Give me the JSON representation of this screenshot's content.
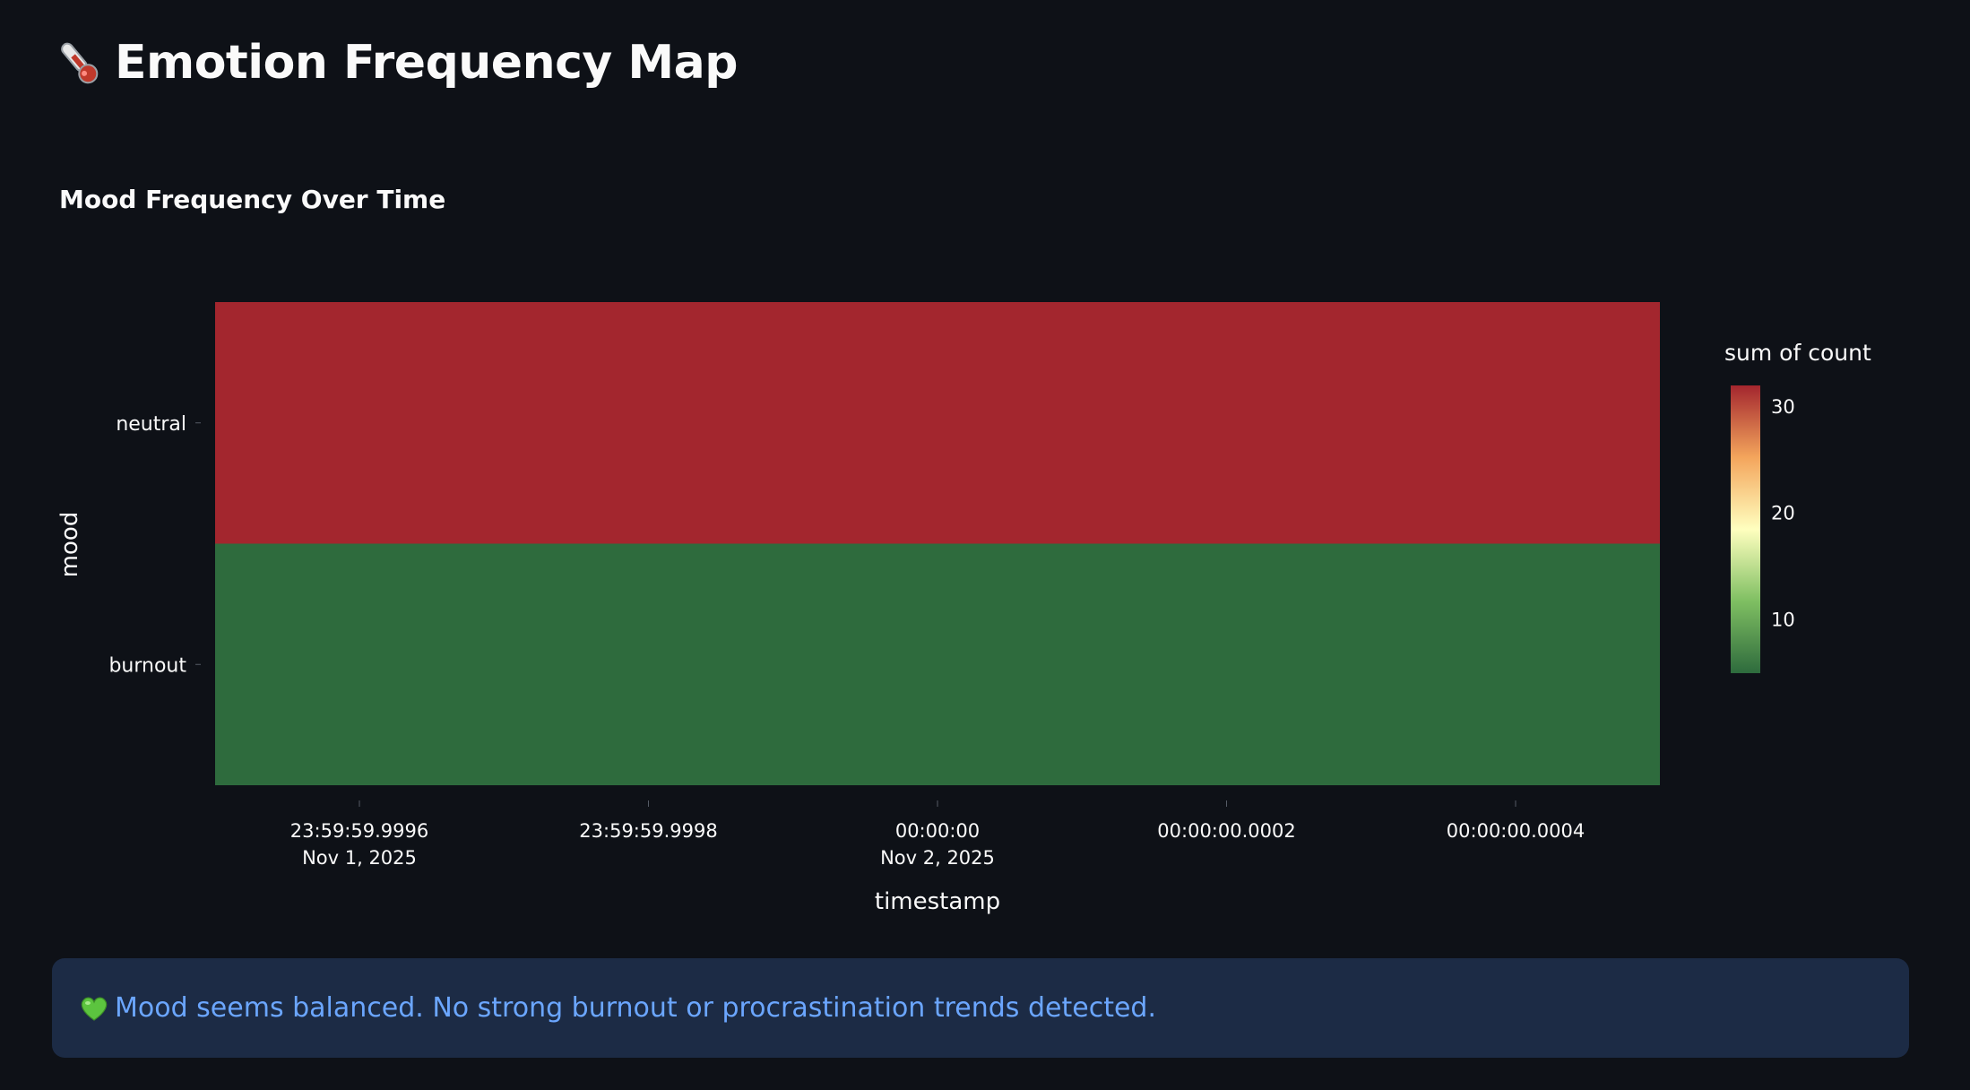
{
  "page": {
    "title": "Emotion Frequency Map",
    "title_icon": "thermometer-icon"
  },
  "chart_data": {
    "type": "heatmap",
    "title": "Mood Frequency Over Time",
    "xlabel": "timestamp",
    "ylabel": "mood",
    "x_ticks": [
      {
        "line1": "23:59:59.9996",
        "line2": "Nov 1, 2025"
      },
      {
        "line1": "23:59:59.9998",
        "line2": ""
      },
      {
        "line1": "00:00:00",
        "line2": "Nov 2, 2025"
      },
      {
        "line1": "00:00:00.0002",
        "line2": ""
      },
      {
        "line1": "00:00:00.0004",
        "line2": ""
      }
    ],
    "y_categories": [
      "neutral",
      "burnout"
    ],
    "x": [
      "Nov 2, 2025"
    ],
    "z": [
      [
        32
      ],
      [
        5
      ]
    ],
    "colorbar": {
      "title": "sum of count",
      "range": [
        5,
        32
      ],
      "ticks": [
        30,
        20,
        10
      ],
      "colorscale": [
        "#2e6b3d",
        "#7fbf62",
        "#ffffbf",
        "#f4a55c",
        "#a3262e"
      ]
    },
    "grid": false,
    "legend": "colorbar right"
  },
  "alert": {
    "icon": "green-heart-icon",
    "text": "Mood seems balanced. No strong burnout or procrastination trends detected.",
    "accent": "#6ba6ff",
    "background": "#1c2b45"
  }
}
